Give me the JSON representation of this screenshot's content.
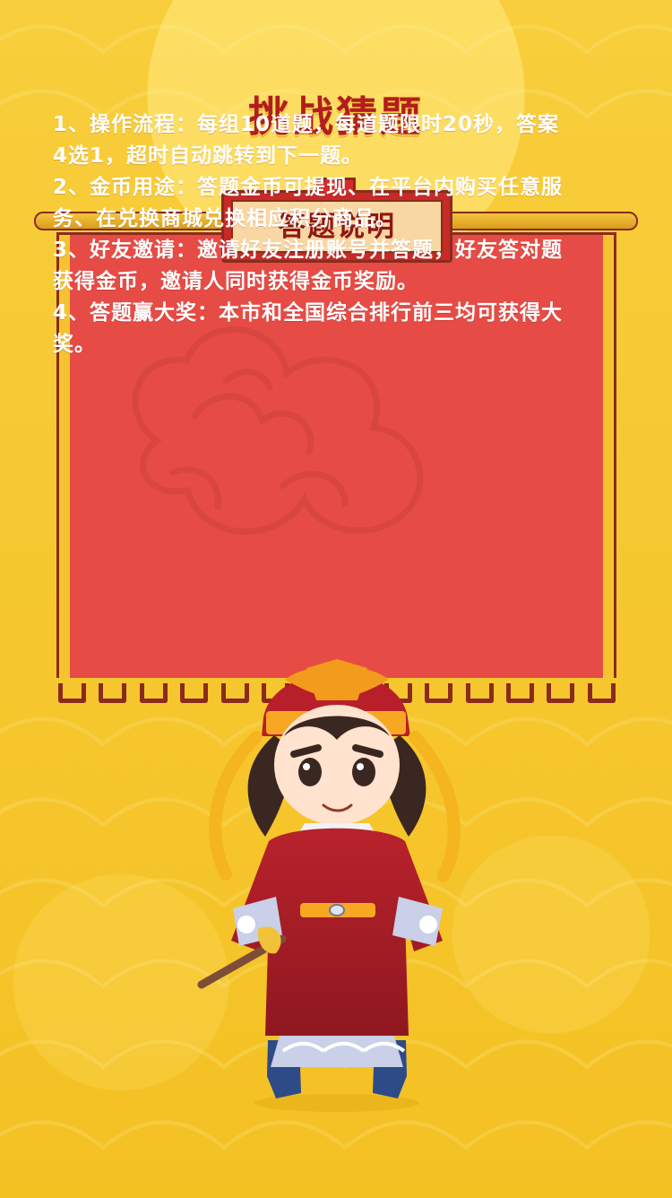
{
  "page": {
    "title": "挑战猜题"
  },
  "notice": {
    "heading": "答题说明",
    "rules": [
      "1、操作流程：每组10道题，每道题限时20秒，答案4选1，超时自动跳转到下一题。",
      "2、金币用途：答题金币可提现、在平台内购买任意服务、在兑换商城兑换相应积分商品。",
      "3、好友邀请：邀请好友注册账号并答题，好友答对题获得金币，邀请人同时获得金币奖励。",
      "4、答题赢大奖：本市和全国综合排行前三均可获得大奖。"
    ]
  },
  "colors": {
    "background": "#f6c42a",
    "panel": "#e64c45",
    "border": "#8b2b1d",
    "title": "#b31d1d",
    "text": "#ffffff"
  },
  "icons": {
    "cloud": "cloud-icon",
    "character": "judge-character-icon"
  }
}
